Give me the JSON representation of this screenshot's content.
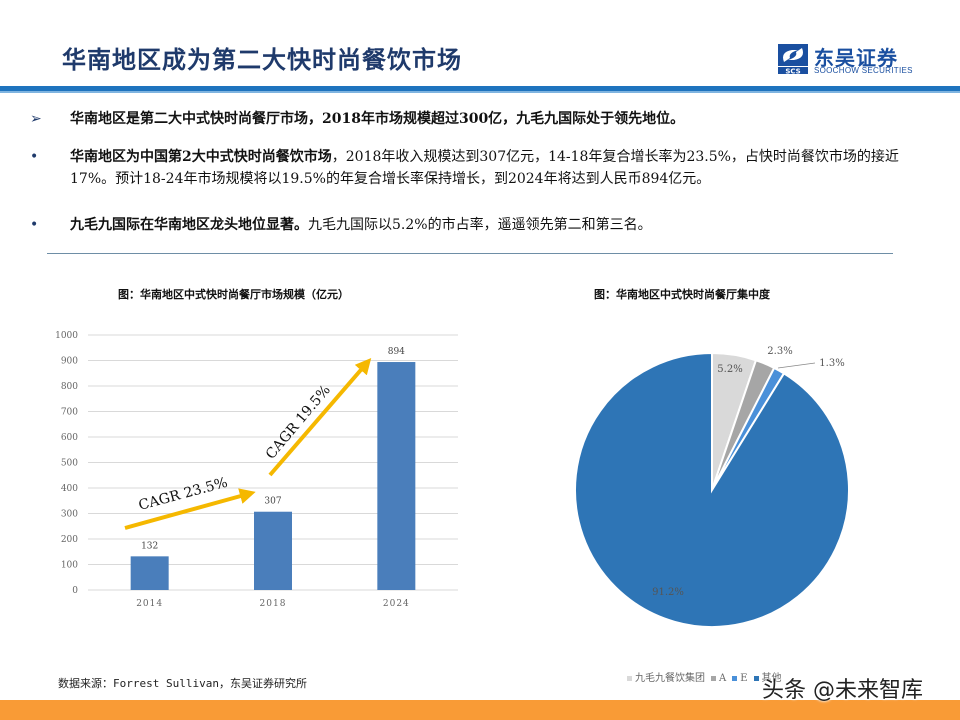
{
  "header": {
    "title": "华南地区成为第二大快时尚餐饮市场",
    "logo": {
      "cn": "东吴证券",
      "en": "SOOCHOW SECURITIES",
      "abbr": "SCS"
    },
    "colors": {
      "title": "#1f3a6b",
      "bar": "#1e73be"
    }
  },
  "bullets": [
    {
      "marker": "➢",
      "bold": "华南地区是第二大中式快时尚餐厅市场，2018年市场规模超过300亿，九毛九国际处于领先地位。",
      "text": ""
    },
    {
      "marker": "•",
      "bold": "华南地区为中国第2大中式快时尚餐饮市场",
      "text": "，2018年收入规模达到307亿元，14-18年复合增长率为23.5%，占快时尚餐饮市场的接近17%。预计18-24年市场规模将以19.5%的年复合增长率保持增长，到2024年将达到人民币894亿元。"
    },
    {
      "marker": "•",
      "bold": "九毛九国际在华南地区龙头地位显著。",
      "text": "九毛九国际以5.2%的市占率，遥遥领先第二和第三名。"
    }
  ],
  "chart_data": [
    {
      "type": "bar",
      "title": "图：华南地区中式快时尚餐厅市场规模（亿元）",
      "categories": [
        "2014",
        "2018",
        "2024"
      ],
      "values": [
        132,
        307,
        894
      ],
      "xlabel": "",
      "ylabel": "",
      "ylim": [
        0,
        1000
      ],
      "yticks": [
        0,
        100,
        200,
        300,
        400,
        500,
        600,
        700,
        800,
        900,
        1000
      ],
      "grid": true,
      "bar_color": "#4a7ebb",
      "annotations": [
        {
          "text": "CAGR 23.5%",
          "from": "2014",
          "to": "2018",
          "color": "#f5b800"
        },
        {
          "text": "CAGR 19.5%",
          "from": "2018",
          "to": "2024",
          "color": "#f5b800"
        }
      ]
    },
    {
      "type": "pie",
      "title": "图：华南地区中式快时尚餐厅集中度",
      "labels": [
        "九毛九餐饮集团",
        "A",
        "E",
        "其他"
      ],
      "values": [
        5.2,
        2.3,
        1.3,
        91.2
      ],
      "value_labels": [
        "5.2%",
        "2.3%",
        "1.3%",
        "91.2%"
      ],
      "colors": [
        "#d9d9d9",
        "#a6a6a6",
        "#4a90d9",
        "#2e75b6"
      ],
      "legend_position": "bottom"
    }
  ],
  "footer": {
    "source": "数据来源：Forrest Sullivan，东吴证券研究所",
    "watermark": "头条 @未来智库",
    "bar_color": "#f99b36"
  }
}
